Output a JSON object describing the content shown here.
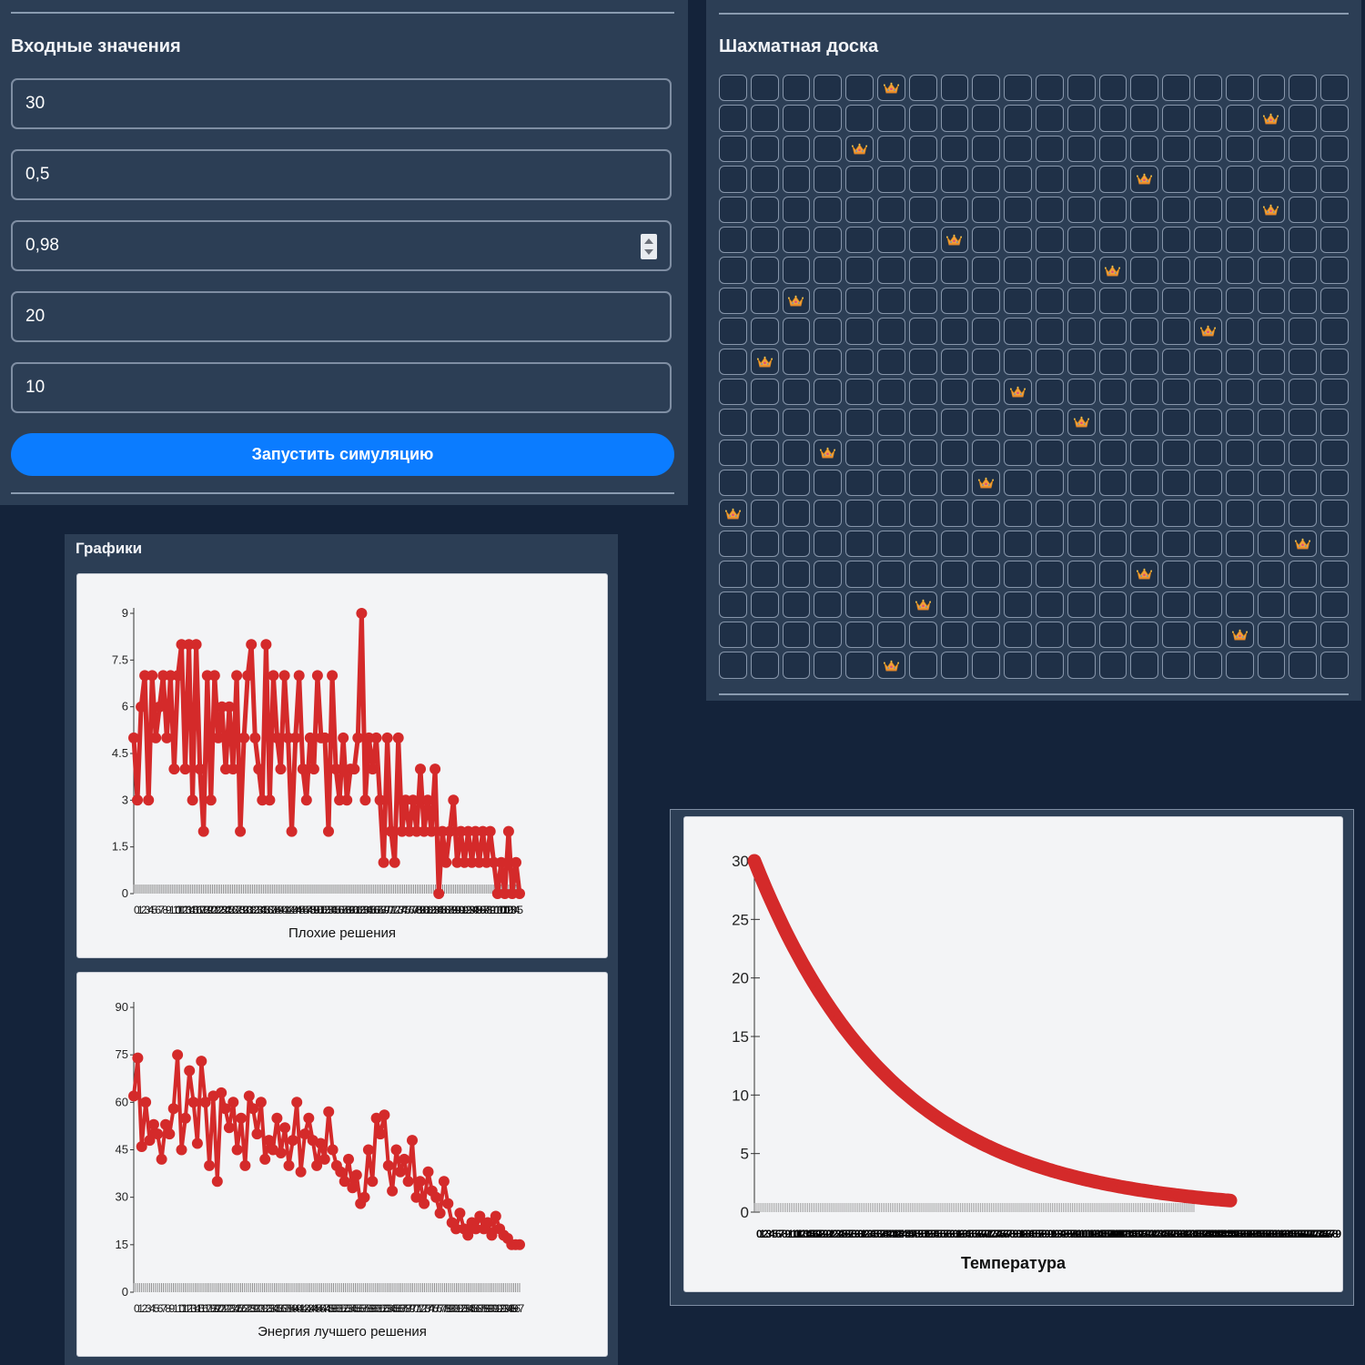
{
  "inputs_panel": {
    "title": "Входные значения",
    "fields": [
      "30",
      "0,5",
      "0,98",
      "20",
      "10"
    ],
    "run_button": "Запустить симуляцию"
  },
  "board_panel": {
    "title": "Шахматная доска",
    "size": 20,
    "queen_columns": [
      5,
      17,
      4,
      13,
      17,
      7,
      12,
      2,
      15,
      1,
      9,
      11,
      3,
      8,
      0,
      18,
      13,
      6,
      16,
      5
    ],
    "queen_icon": "crown-icon"
  },
  "charts_panel": {
    "title": "Графики"
  },
  "colors": {
    "line": "#d42a2a",
    "accent": "#0b7cff",
    "panel": "#2c3e55",
    "background": "#14233a"
  },
  "chart_data": [
    {
      "type": "line",
      "xlabel": "Плохие решения",
      "ylim": [
        0,
        9
      ],
      "yticks": [
        "0",
        "1.5",
        "3",
        "4.5",
        "6",
        "7.5",
        "9"
      ],
      "values": [
        5,
        3,
        6,
        7,
        3,
        7,
        5,
        6,
        7,
        5,
        7,
        4,
        7,
        8,
        4,
        8,
        3,
        8,
        4,
        2,
        7,
        3,
        7,
        5,
        6,
        4,
        6,
        4,
        7,
        2,
        5,
        7,
        8,
        5,
        4,
        3,
        8,
        3,
        7,
        5,
        4,
        7,
        5,
        2,
        5,
        7,
        4,
        3,
        5,
        4,
        7,
        5,
        5,
        2,
        7,
        4,
        3,
        5,
        3,
        4,
        4,
        5,
        9,
        3,
        5,
        4,
        5,
        3,
        1,
        5,
        2,
        1,
        5,
        2,
        3,
        2,
        3,
        2,
        4,
        2,
        3,
        2,
        4,
        0,
        2,
        1,
        2,
        3,
        1,
        2,
        1,
        2,
        1,
        2,
        1,
        2,
        1,
        2,
        1,
        0,
        1,
        0,
        2,
        0,
        1,
        0
      ]
    },
    {
      "type": "line",
      "xlabel": "Энергия лучшего решения",
      "ylim": [
        0,
        90
      ],
      "yticks": [
        "0",
        "15",
        "30",
        "45",
        "60",
        "75",
        "90"
      ],
      "values": [
        62,
        74,
        46,
        60,
        48,
        53,
        50,
        42,
        53,
        50,
        58,
        75,
        45,
        55,
        70,
        60,
        47,
        73,
        60,
        40,
        62,
        35,
        63,
        58,
        52,
        60,
        45,
        55,
        40,
        62,
        58,
        50,
        60,
        42,
        48,
        45,
        55,
        44,
        52,
        40,
        48,
        60,
        38,
        50,
        55,
        48,
        40,
        47,
        42,
        57,
        45,
        40,
        38,
        35,
        42,
        33,
        37,
        28,
        30,
        45,
        35,
        55,
        50,
        56,
        40,
        32,
        45,
        38,
        42,
        35,
        48,
        30,
        35,
        28,
        38,
        32,
        30,
        25,
        35,
        28,
        22,
        20,
        25,
        20,
        18,
        22,
        20,
        24,
        20,
        22,
        18,
        24,
        20,
        18,
        17,
        15,
        15,
        15
      ]
    },
    {
      "type": "line",
      "xlabel": "Температура",
      "ylim": [
        0,
        30
      ],
      "yticks": [
        "0",
        "5",
        "10",
        "15",
        "20",
        "25",
        "30"
      ],
      "series": [
        {
          "start": 30,
          "factor": 0.98,
          "count": 170
        }
      ]
    }
  ]
}
